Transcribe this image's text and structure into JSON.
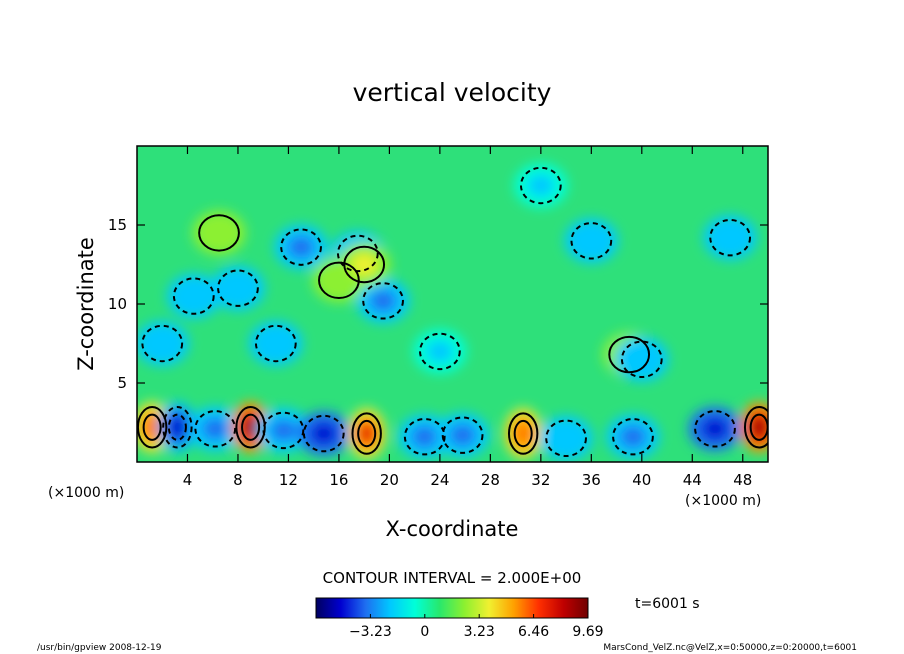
{
  "chart_data": {
    "type": "heatmap",
    "title": "vertical velocity",
    "xlabel": "X-coordinate",
    "ylabel": "Z-coordinate",
    "x_unit": "(×1000 m)",
    "y_unit": "(×1000 m)",
    "xlim": [
      0,
      50
    ],
    "ylim": [
      0,
      20
    ],
    "x_ticks": [
      4,
      8,
      12,
      16,
      20,
      24,
      28,
      32,
      36,
      40,
      44,
      48
    ],
    "y_ticks": [
      5,
      10,
      15
    ],
    "contour_interval_label": "CONTOUR INTERVAL = 2.000E+00",
    "time_label": "t=6001 s",
    "colorbar": {
      "tick_values": [
        -3.23,
        0,
        3.23,
        6.46,
        9.69
      ],
      "tick_labels": [
        "−3.23",
        "0",
        "3.23",
        "6.46",
        "9.69"
      ],
      "range": [
        -6.46,
        9.69
      ],
      "colors": [
        "#000060",
        "#0000d0",
        "#1e6ef0",
        "#00c8ff",
        "#00ffd8",
        "#28e86c",
        "#8cf030",
        "#f0f030",
        "#ffa000",
        "#ff3000",
        "#c00000",
        "#700000"
      ]
    },
    "features": [
      {
        "x": 1.2,
        "z": 2.2,
        "value": 7.0
      },
      {
        "x": 3.2,
        "z": 2.2,
        "value": -5.2
      },
      {
        "x": 6.2,
        "z": 2.1,
        "value": -3.6
      },
      {
        "x": 9.0,
        "z": 2.2,
        "value": 9.5
      },
      {
        "x": 11.6,
        "z": 2.0,
        "value": -3.8
      },
      {
        "x": 14.8,
        "z": 1.8,
        "value": -4.8
      },
      {
        "x": 18.2,
        "z": 1.8,
        "value": 7.8
      },
      {
        "x": 22.8,
        "z": 1.6,
        "value": -4.0
      },
      {
        "x": 25.8,
        "z": 1.7,
        "value": -3.0
      },
      {
        "x": 30.6,
        "z": 1.8,
        "value": 6.8
      },
      {
        "x": 34.0,
        "z": 1.5,
        "value": -2.6
      },
      {
        "x": 39.3,
        "z": 1.6,
        "value": -3.4
      },
      {
        "x": 45.8,
        "z": 2.1,
        "value": -4.6
      },
      {
        "x": 49.3,
        "z": 2.2,
        "value": 9.69
      },
      {
        "x": 13.0,
        "z": 13.6,
        "value": -2.8
      },
      {
        "x": 17.5,
        "z": 13.2,
        "value": -3.2
      },
      {
        "x": 4.5,
        "z": 10.5,
        "value": -2.4
      },
      {
        "x": 8.0,
        "z": 11.0,
        "value": -2.0
      },
      {
        "x": 19.5,
        "z": 10.2,
        "value": -3.0
      },
      {
        "x": 16.0,
        "z": 11.5,
        "value": 2.6
      },
      {
        "x": 18.0,
        "z": 12.5,
        "value": 3.2
      },
      {
        "x": 6.5,
        "z": 14.5,
        "value": 2.4
      },
      {
        "x": 47.0,
        "z": 14.2,
        "value": -2.2
      },
      {
        "x": 36.0,
        "z": 14.0,
        "value": -2.2
      },
      {
        "x": 32.0,
        "z": 17.5,
        "value": -1.8
      },
      {
        "x": 39.0,
        "z": 6.8,
        "value": 2.6
      },
      {
        "x": 40.0,
        "z": 6.5,
        "value": -2.4
      },
      {
        "x": 2.0,
        "z": 7.5,
        "value": -2.0
      },
      {
        "x": 24.0,
        "z": 7.0,
        "value": -1.6
      },
      {
        "x": 11.0,
        "z": 7.5,
        "value": -2.0
      }
    ]
  },
  "footer": {
    "left": "/usr/bin/gpview   2008-12-19",
    "right": "MarsCond_VelZ.nc@VelZ,x=0:50000,z=0:20000,t=6001"
  }
}
